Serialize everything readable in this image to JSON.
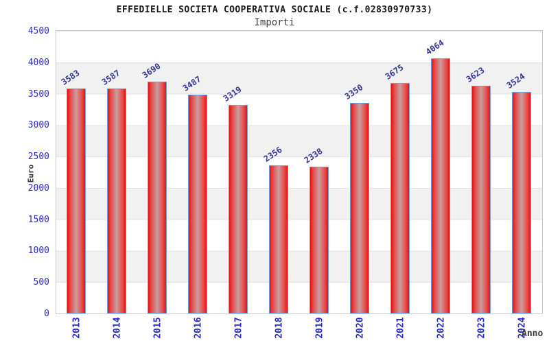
{
  "header": {
    "title": "EFFEDIELLE SOCIETA COOPERATIVA SOCIALE (c.f.02830970733)",
    "subtitle": "Importi"
  },
  "chart_data": {
    "type": "bar",
    "title": "EFFEDIELLE SOCIETA COOPERATIVA SOCIALE (c.f.02830970733)",
    "subtitle": "Importi",
    "xlabel": "Anno",
    "ylabel": "Euro",
    "categories": [
      "2013",
      "2014",
      "2015",
      "2016",
      "2017",
      "2018",
      "2019",
      "2020",
      "2021",
      "2022",
      "2023",
      "2024"
    ],
    "values": [
      3583,
      3587,
      3690,
      3487,
      3319,
      2356,
      2338,
      3350,
      3675,
      4064,
      3623,
      3524
    ],
    "ylim": [
      0,
      4500
    ],
    "yticks": [
      0,
      500,
      1000,
      1500,
      2000,
      2500,
      3000,
      3500,
      4000,
      4500
    ],
    "grid": "alternating horizontal bands every 500",
    "legend_position": "none",
    "value_labels_shown": true,
    "colors": {
      "bar_edge": "#e21111",
      "bar_mid": "#ea4545",
      "bar_center": "#c99e9e",
      "bar_border": "#67a3e3",
      "tick_label": "#2727cf",
      "value_label": "#353599",
      "band_gray": "#f1f1f1",
      "plot_border": "#c9c9c9"
    }
  }
}
